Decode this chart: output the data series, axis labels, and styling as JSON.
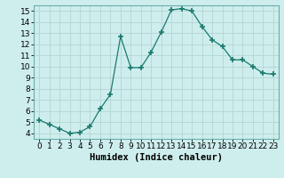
{
  "x": [
    0,
    1,
    2,
    3,
    4,
    5,
    6,
    7,
    8,
    9,
    10,
    11,
    12,
    13,
    14,
    15,
    16,
    17,
    18,
    19,
    20,
    21,
    22,
    23
  ],
  "y": [
    5.2,
    4.8,
    4.4,
    4.0,
    4.1,
    4.6,
    6.2,
    7.5,
    12.7,
    9.9,
    9.9,
    11.3,
    13.1,
    15.1,
    15.2,
    15.0,
    13.6,
    12.4,
    11.8,
    10.6,
    10.6,
    10.0,
    9.4,
    9.3
  ],
  "line_color": "#1a7a6e",
  "marker": "+",
  "marker_size": 4,
  "marker_linewidth": 1.2,
  "bg_color": "#ceeeed",
  "grid_color": "#b8d8d6",
  "xlabel": "Humidex (Indice chaleur)",
  "xlim": [
    -0.5,
    23.5
  ],
  "ylim": [
    3.5,
    15.5
  ],
  "yticks": [
    4,
    5,
    6,
    7,
    8,
    9,
    10,
    11,
    12,
    13,
    14,
    15
  ],
  "xticks": [
    0,
    1,
    2,
    3,
    4,
    5,
    6,
    7,
    8,
    9,
    10,
    11,
    12,
    13,
    14,
    15,
    16,
    17,
    18,
    19,
    20,
    21,
    22,
    23
  ],
  "xlabel_fontsize": 7.5,
  "tick_fontsize": 6.5
}
